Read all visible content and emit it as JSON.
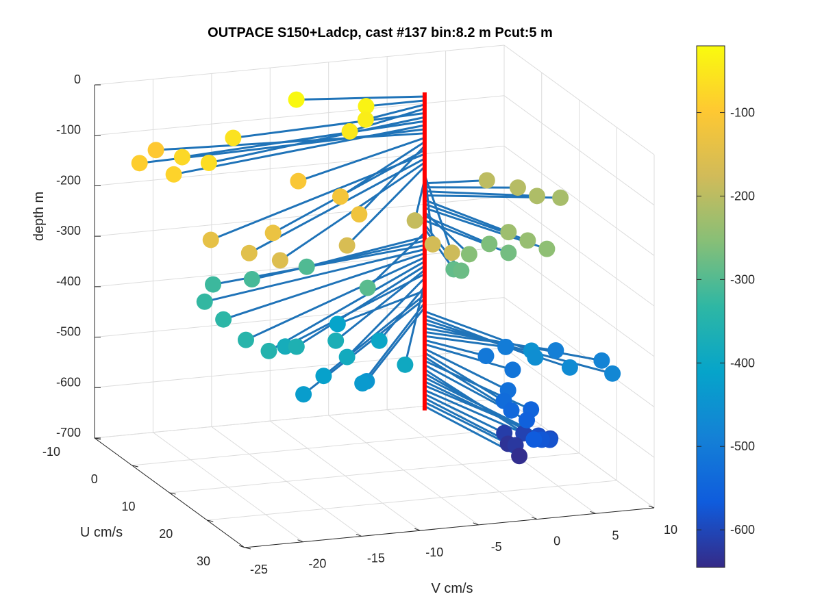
{
  "chart_data": {
    "type": "scatter",
    "title": "OUTPACE S150+Ladcp, cast #137 bin:8.2 m  Pcut:5 m",
    "xlabel": "V cm/s",
    "ylabel": "U cm/s",
    "zlabel": "depth m",
    "v_ticks": [
      "-25",
      "-20",
      "-15",
      "-10",
      "-5",
      "0",
      "5",
      "10"
    ],
    "u_ticks": [
      "-10",
      "0",
      "10",
      "20",
      "30"
    ],
    "depth_ticks": [
      "0",
      "-100",
      "-200",
      "-300",
      "-400",
      "-500",
      "-600",
      "-700"
    ],
    "colorbar_ticks": [
      "-100",
      "-200",
      "-300",
      "-400",
      "-500",
      "-600"
    ],
    "vlim": [
      -25,
      10
    ],
    "ulim": [
      -10,
      30
    ],
    "zlim": [
      -700,
      0
    ],
    "clim": [
      -645,
      -20
    ],
    "grid": true,
    "colormap": "parula",
    "stick_color": "#1f73b8",
    "axis_line_color": "#ff0000",
    "series": [
      {
        "depths": [
          -25,
          -33,
          -41,
          -49,
          -58,
          -66,
          -74,
          -82,
          -90,
          -98,
          -107,
          -115,
          -123,
          -131,
          -139,
          -148,
          -156,
          -164,
          -172,
          -180,
          -189,
          -197,
          -205,
          -213,
          -221,
          -230,
          -238,
          -246,
          -254,
          -262,
          -271,
          -279,
          -287,
          -295,
          -303,
          -311,
          -320,
          -328,
          -336,
          -344,
          -352,
          -361,
          -369,
          -377,
          -385,
          -393,
          -402,
          -410,
          -418,
          -426,
          -434,
          -443,
          -451,
          -459,
          -467,
          -475,
          -484,
          -492,
          -500,
          -508,
          -516,
          -525,
          -533,
          -541,
          -549,
          -557,
          -566,
          -574,
          -582,
          -590,
          -598,
          -607,
          -615,
          -623,
          -631,
          -639
        ],
        "v": [
          -10,
          -5,
          -6,
          -8,
          -17,
          -21,
          -22,
          -24,
          -25,
          -22,
          -14,
          -12,
          -12,
          -20,
          -25,
          -23,
          -21,
          -14,
          -7,
          -6,
          -5,
          5,
          7,
          8,
          10,
          3,
          4,
          5,
          -1,
          2,
          3,
          -2,
          -2,
          -10,
          -12,
          -17,
          -20,
          -22,
          -22,
          -22,
          -21,
          -18,
          -14,
          -18,
          -14,
          -10,
          -9,
          -10,
          -16,
          -19,
          -13,
          -12,
          4,
          4,
          6,
          9,
          10,
          8,
          5,
          3,
          4,
          2,
          1,
          1,
          3,
          2,
          1,
          2,
          3,
          3,
          4,
          3,
          2,
          2,
          2,
          2
        ],
        "u": [
          -3,
          0,
          3,
          5,
          2,
          8,
          4,
          8,
          2,
          -3,
          10,
          15,
          20,
          22,
          21,
          25,
          27,
          23,
          24,
          26,
          13,
          1,
          3,
          5,
          5,
          13,
          15,
          17,
          15,
          11,
          13,
          16,
          14,
          16,
          6,
          7,
          6,
          10,
          15,
          21,
          24,
          22,
          20,
          19,
          23,
          26,
          16,
          8,
          23,
          27,
          24,
          22,
          16,
          17,
          20,
          22,
          16,
          10,
          6,
          7,
          11,
          16,
          18,
          20,
          19,
          21,
          26,
          25,
          24,
          21,
          21,
          17,
          15,
          18,
          16,
          19
        ]
      }
    ]
  }
}
